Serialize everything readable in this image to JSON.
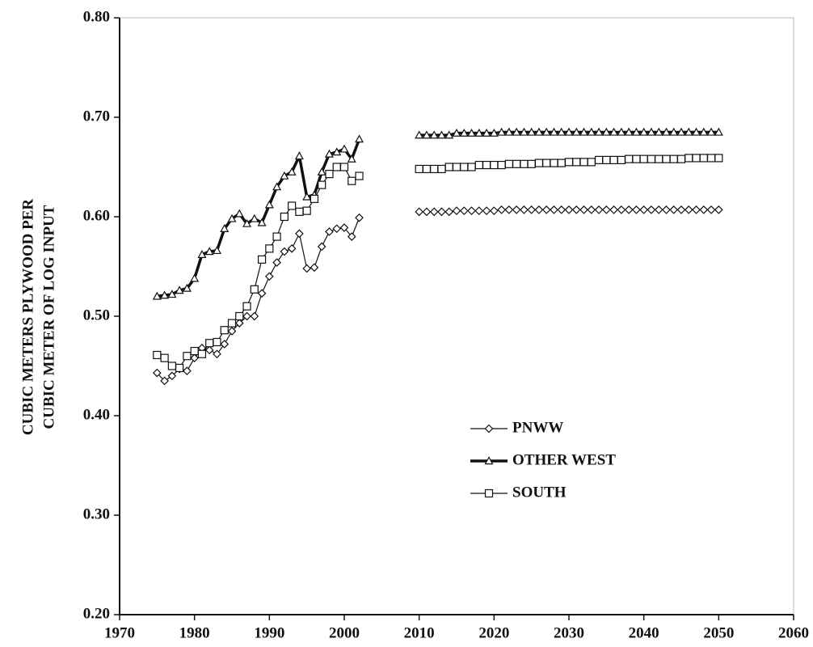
{
  "chart_data": {
    "type": "line",
    "ylabel": [
      "CUBIC METERS PLYWOOD PER",
      "CUBIC METER OF LOG INPUT"
    ],
    "x": [
      1975,
      1976,
      1977,
      1978,
      1979,
      1980,
      1981,
      1982,
      1983,
      1984,
      1985,
      1986,
      1987,
      1988,
      1989,
      1990,
      1991,
      1992,
      1993,
      1994,
      1995,
      1996,
      1997,
      1998,
      1999,
      2000,
      2001,
      2002,
      2006,
      2010,
      2011,
      2012,
      2013,
      2014,
      2015,
      2016,
      2017,
      2018,
      2019,
      2020,
      2021,
      2022,
      2023,
      2024,
      2025,
      2026,
      2027,
      2028,
      2029,
      2030,
      2031,
      2032,
      2033,
      2034,
      2035,
      2036,
      2037,
      2038,
      2039,
      2040,
      2041,
      2042,
      2043,
      2044,
      2045,
      2046,
      2047,
      2048,
      2049,
      2050
    ],
    "series": [
      {
        "name": "PNWW",
        "color": "#111111",
        "marker": "diamond",
        "line_width": 1.2,
        "values": [
          0.443,
          0.435,
          0.44,
          0.447,
          0.445,
          0.458,
          0.468,
          0.466,
          0.462,
          0.472,
          0.485,
          0.493,
          0.5,
          0.5,
          0.523,
          0.54,
          0.554,
          0.565,
          0.568,
          0.583,
          0.548,
          0.549,
          0.57,
          0.585,
          0.588,
          0.589,
          0.58,
          0.599,
          null,
          0.605,
          0.605,
          0.605,
          0.605,
          0.605,
          0.606,
          0.606,
          0.606,
          0.606,
          0.606,
          0.606,
          0.607,
          0.607,
          0.607,
          0.607,
          0.607,
          0.607,
          0.607,
          0.607,
          0.607,
          0.607,
          0.607,
          0.607,
          0.607,
          0.607,
          0.607,
          0.607,
          0.607,
          0.607,
          0.607,
          0.607,
          0.607,
          0.607,
          0.607,
          0.607,
          0.607,
          0.607,
          0.607,
          0.607,
          0.607,
          0.607
        ]
      },
      {
        "name": "OTHER WEST",
        "color": "#111111",
        "marker": "triangle",
        "line_width": 3.5,
        "values": [
          0.52,
          0.521,
          0.522,
          0.526,
          0.528,
          0.538,
          0.562,
          0.565,
          0.566,
          0.588,
          0.598,
          0.603,
          0.593,
          0.598,
          0.594,
          0.612,
          0.63,
          0.641,
          0.645,
          0.661,
          0.62,
          0.622,
          0.645,
          0.663,
          0.665,
          0.668,
          0.658,
          0.678,
          null,
          0.682,
          0.682,
          0.682,
          0.682,
          0.682,
          0.684,
          0.684,
          0.684,
          0.684,
          0.684,
          0.684,
          0.685,
          0.685,
          0.685,
          0.685,
          0.685,
          0.685,
          0.685,
          0.685,
          0.685,
          0.685,
          0.685,
          0.685,
          0.685,
          0.685,
          0.685,
          0.685,
          0.685,
          0.685,
          0.685,
          0.685,
          0.685,
          0.685,
          0.685,
          0.685,
          0.685,
          0.685,
          0.685,
          0.685,
          0.685,
          0.685
        ]
      },
      {
        "name": "SOUTH",
        "color": "#111111",
        "marker": "square",
        "line_width": 1.2,
        "values": [
          0.461,
          0.458,
          0.45,
          0.448,
          0.46,
          0.465,
          0.462,
          0.473,
          0.474,
          0.486,
          0.493,
          0.5,
          0.51,
          0.527,
          0.557,
          0.568,
          0.58,
          0.6,
          0.611,
          0.605,
          0.606,
          0.618,
          0.632,
          0.643,
          0.65,
          0.65,
          0.636,
          0.641,
          null,
          0.648,
          0.648,
          0.648,
          0.648,
          0.65,
          0.65,
          0.65,
          0.65,
          0.652,
          0.652,
          0.652,
          0.652,
          0.653,
          0.653,
          0.653,
          0.653,
          0.654,
          0.654,
          0.654,
          0.654,
          0.655,
          0.655,
          0.655,
          0.655,
          0.657,
          0.657,
          0.657,
          0.657,
          0.658,
          0.658,
          0.658,
          0.658,
          0.658,
          0.658,
          0.658,
          0.658,
          0.659,
          0.659,
          0.659,
          0.659,
          0.659
        ]
      }
    ],
    "xlim": [
      1970,
      2060
    ],
    "xticks": [
      1970,
      1980,
      1990,
      2000,
      2010,
      2020,
      2030,
      2040,
      2050,
      2060
    ],
    "ylim": [
      0.2,
      0.8
    ],
    "yticks": [
      {
        "value": 0.2,
        "label": "0.20"
      },
      {
        "value": 0.3,
        "label": "0.30"
      },
      {
        "value": 0.4,
        "label": "0.40"
      },
      {
        "value": 0.5,
        "label": "0.50"
      },
      {
        "value": 0.6,
        "label": "0.60"
      },
      {
        "value": 0.7,
        "label": "0.70"
      },
      {
        "value": 0.8,
        "label": "0.80"
      }
    ],
    "legend": "lower right"
  }
}
